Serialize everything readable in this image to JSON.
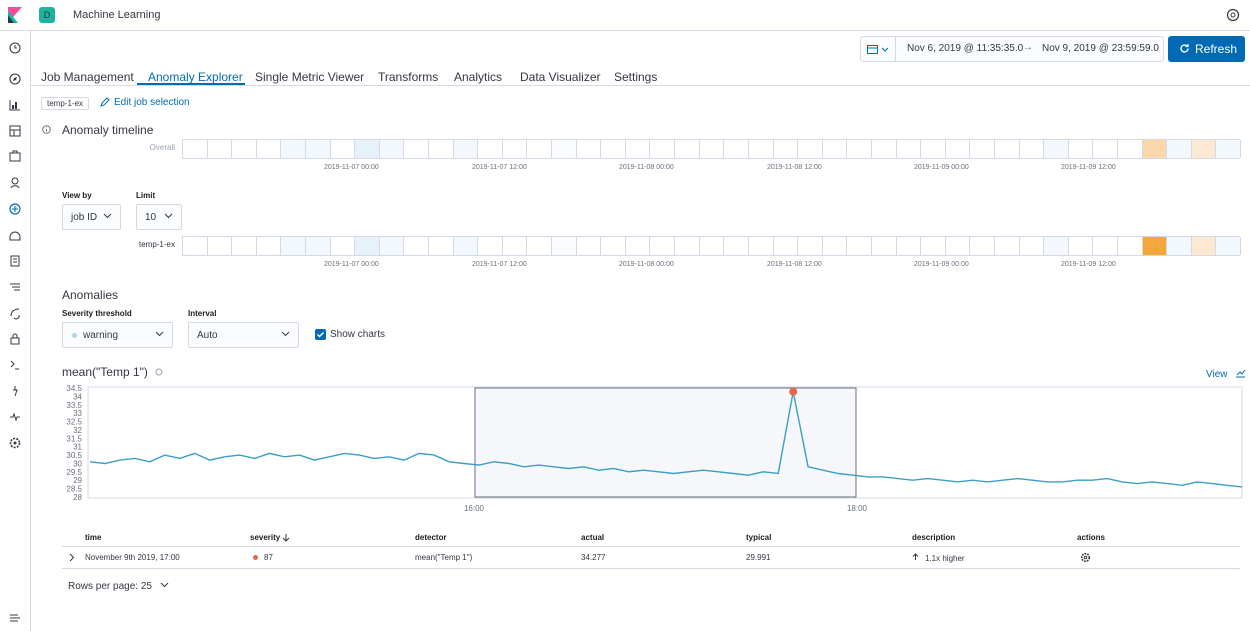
{
  "header": {
    "title": "Machine Learning",
    "space_initial": "D"
  },
  "sidebar": {
    "items": [
      "recently-viewed",
      "discover",
      "visualize",
      "dashboard",
      "canvas",
      "maps",
      "machine-learning",
      "infrastructure",
      "logs",
      "apm",
      "uptime",
      "siem",
      "dev-tools",
      "stack-monitoring",
      "management",
      "collapse"
    ]
  },
  "datepicker": {
    "start": "Nov 6, 2019 @ 11:35:35.0",
    "arrow": "→",
    "end": "Nov 9, 2019 @ 23:59:59.0",
    "refresh_label": "Refresh"
  },
  "tabs": [
    {
      "label": "Job Management"
    },
    {
      "label": "Anomaly Explorer"
    },
    {
      "label": "Single Metric Viewer"
    },
    {
      "label": "Transforms"
    },
    {
      "label": "Analytics"
    },
    {
      "label": "Data Visualizer"
    },
    {
      "label": "Settings"
    }
  ],
  "job": {
    "badge": "temp-1-ex",
    "edit_label": "Edit job selection"
  },
  "timeline": {
    "title": "Anomaly timeline",
    "overall_label": "Overall",
    "job_label": "temp-1-ex",
    "ticks": [
      "2019-11-07 00:00",
      "2019-11-07 12:00",
      "2019-11-08 00:00",
      "2019-11-08 12:00",
      "2019-11-09 00:00",
      "2019-11-09 12:00"
    ]
  },
  "view_by": {
    "label": "View by",
    "value": "job ID"
  },
  "limit": {
    "label": "Limit",
    "value": "10"
  },
  "anomalies": {
    "title": "Anomalies",
    "severity_label": "Severity threshold",
    "severity_value": "warning",
    "interval_label": "Interval",
    "interval_value": "Auto",
    "show_charts_label": "Show charts"
  },
  "chart": {
    "title": "mean(\"Temp 1\")",
    "view_label": "View",
    "x_ticks": [
      "16:00",
      "18:00"
    ],
    "y_ticks": [
      "34.5",
      "34",
      "33.5",
      "33",
      "32.5",
      "32",
      "31.5",
      "31",
      "30.5",
      "30",
      "29.5",
      "29",
      "28.5",
      "28"
    ]
  },
  "chart_data": {
    "type": "line",
    "title": "mean(\"Temp 1\")",
    "ylim": [
      28,
      34.5
    ],
    "xlabel": "",
    "ylabel": "",
    "series": [
      {
        "values": [
          30.1,
          30.0,
          30.2,
          30.3,
          30.1,
          30.5,
          30.3,
          30.6,
          30.2,
          30.4,
          30.5,
          30.3,
          30.6,
          30.4,
          30.5,
          30.2,
          30.4,
          30.6,
          30.5,
          30.3,
          30.4,
          30.2,
          30.6,
          30.5,
          30.1,
          30.0,
          29.9,
          30.1,
          30.0,
          29.8,
          29.9,
          29.8,
          29.7,
          29.8,
          29.6,
          29.7,
          29.5,
          29.6,
          29.5,
          29.4,
          29.5,
          29.6,
          29.5,
          29.4,
          29.3,
          29.5,
          29.4,
          34.277,
          29.8,
          29.6,
          29.4,
          29.3,
          29.2,
          29.2,
          29.1,
          29.0,
          29.1,
          29.0,
          28.9,
          29.0,
          28.9,
          29.0,
          29.1,
          29.0,
          28.9,
          28.9,
          29.0,
          29.0,
          29.1,
          28.9,
          28.8,
          28.9,
          28.8,
          28.7,
          28.9,
          28.8,
          28.7,
          28.6
        ]
      }
    ],
    "anomaly_point": {
      "y": 34.277,
      "severity": 87
    },
    "selection_window": "16:00 – 18:00"
  },
  "table": {
    "headers": [
      "time",
      "severity",
      "detector",
      "actual",
      "typical",
      "description",
      "actions"
    ],
    "rows": [
      {
        "time": "November 9th 2019, 17:00",
        "severity": "87",
        "detector": "mean(\"Temp 1\")",
        "actual": "34.277",
        "typical": "29.991",
        "description": "1.1x higher"
      }
    ]
  },
  "pagination": {
    "rows_per_page": "Rows per page: 25"
  },
  "colors": {
    "accent": "#006bb4",
    "anomaly": "#e7664c",
    "line": "#3a9fc4"
  }
}
